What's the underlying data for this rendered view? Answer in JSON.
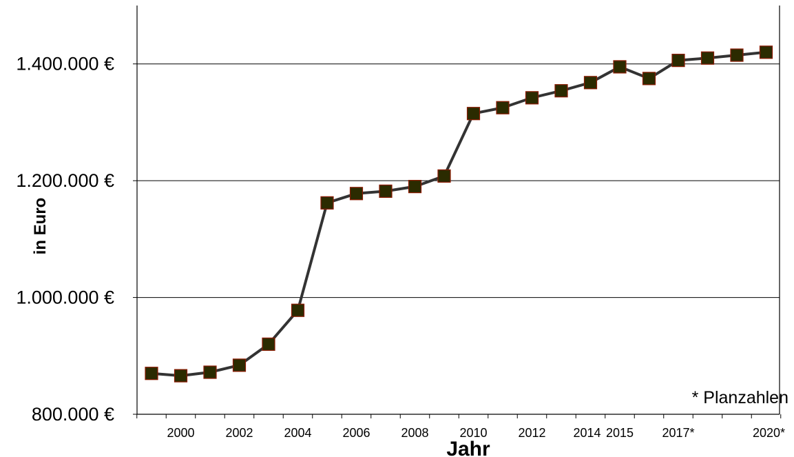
{
  "chart_data": {
    "type": "line",
    "title": "",
    "xlabel": "Jahr",
    "ylabel": "in Euro",
    "ylim": [
      800000,
      1500000
    ],
    "y_ticks": [
      800000,
      1000000,
      1200000,
      1400000
    ],
    "y_tick_labels": [
      "800.000 €",
      "1.000.000 €",
      "1.200.000 €",
      "1.400.000 €"
    ],
    "x_tick_labels": [
      "2000",
      "2002",
      "2004",
      "2006",
      "2008",
      "2010",
      "2012",
      "2014",
      "2015",
      "2017*",
      "2020*"
    ],
    "annotation": "* Planzahlen",
    "grid": "horizontal",
    "legend": "none",
    "line_color": "#333333",
    "marker_fill": "#2b2b00",
    "marker_edge": "#8b1a00",
    "series": [
      {
        "values": [
          870000,
          866000,
          872000,
          884000,
          920000,
          978000,
          1162000,
          1178000,
          1182000,
          1190000,
          1208000,
          1315000,
          1325000,
          1342000,
          1354000,
          1368000,
          1395000,
          1375000,
          1406000,
          1410000,
          1415000,
          1420000
        ]
      }
    ]
  }
}
